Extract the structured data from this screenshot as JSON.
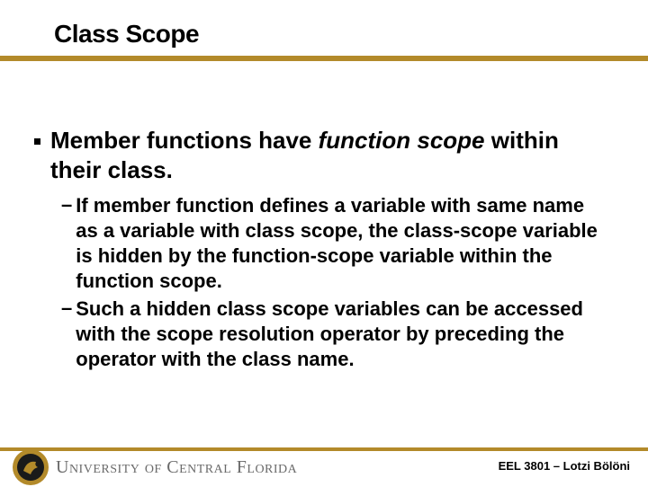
{
  "slide": {
    "title": "Class Scope",
    "title_fontsize": 28,
    "title_color": "#000000",
    "gold_bar_color": "#b38a2a",
    "bullet": {
      "text_parts": [
        "Member functions have ",
        "function scope",
        " within their class."
      ],
      "italic_index": 1,
      "fontsize": 26,
      "color": "#000000",
      "dot_color": "#000000",
      "dot_size": 7
    },
    "subbullets": [
      "If member function defines a variable with same name as a variable with class scope, the class-scope variable is hidden by the function-scope variable within the function scope.",
      "Such a hidden class scope variables can be accessed with the scope resolution operator by preceding the operator with the class name."
    ],
    "sub_fontsize": 22,
    "sub_color": "#000000"
  },
  "footer": {
    "bar_color": "#b38a2a",
    "university": "University of Central Florida",
    "university_color": "#6a6a6a",
    "university_fontsize": 20,
    "right_text": "EEL 3801 – Lotzi Bölöni",
    "right_fontsize": 13,
    "right_color": "#000000",
    "logo_outer": "#b38a2a",
    "logo_inner": "#1a1a1a"
  }
}
